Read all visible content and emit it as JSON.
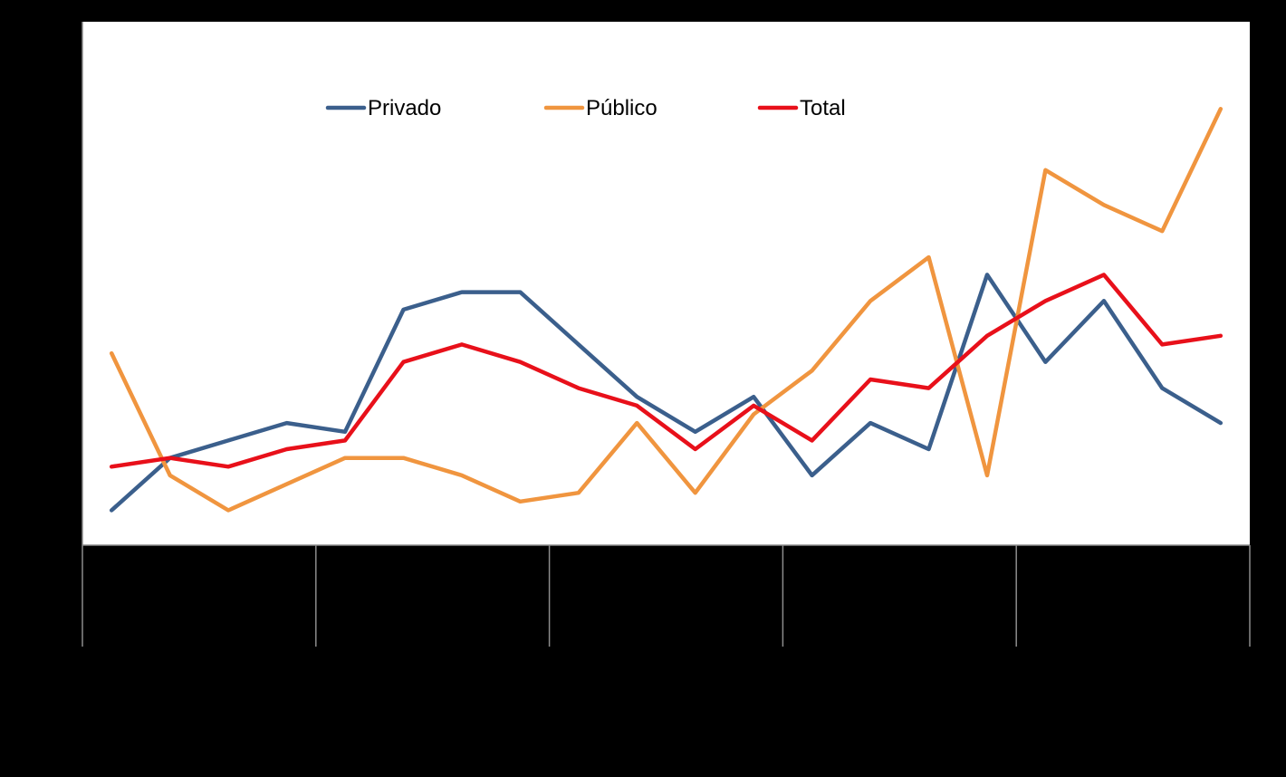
{
  "chart_data": {
    "type": "line",
    "title": "",
    "xlabel": "",
    "ylabel": "",
    "x": [
      1,
      2,
      3,
      4,
      5,
      6,
      7,
      8,
      9,
      10,
      11,
      12,
      13,
      14,
      15,
      16,
      17,
      18,
      19,
      20
    ],
    "ylim": [
      0,
      30
    ],
    "grid": false,
    "legend_position": "top-center",
    "series": [
      {
        "name": "Privado",
        "color": "#3b5f8c",
        "values": [
          2,
          5,
          6,
          7,
          6.5,
          13.5,
          14.5,
          14.5,
          11.5,
          8.5,
          6.5,
          8.5,
          4,
          7,
          5.5,
          15.5,
          10.5,
          14,
          9,
          7
        ]
      },
      {
        "name": "Público",
        "color": "#f0953f",
        "values": [
          11,
          4,
          2,
          3.5,
          5,
          5,
          4,
          2.5,
          3,
          7,
          3,
          7.5,
          10,
          14,
          16.5,
          4,
          21.5,
          19.5,
          18,
          25
        ]
      },
      {
        "name": "Total",
        "color": "#e8101a",
        "values": [
          4.5,
          5,
          4.5,
          5.5,
          6,
          10.5,
          11.5,
          10.5,
          9,
          8,
          5.5,
          8,
          6,
          9.5,
          9,
          12,
          14,
          15.5,
          11.5,
          12
        ]
      }
    ]
  }
}
